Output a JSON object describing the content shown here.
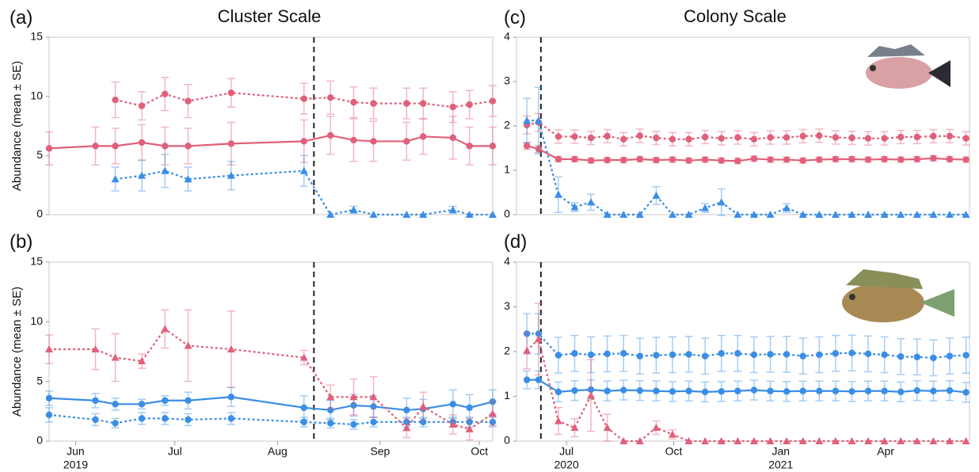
{
  "chart_data": [
    {
      "type": "line",
      "panel_label": "(a)",
      "title": "Cluster Scale",
      "ylabel": "Abundance (mean ± SE)",
      "xlim": [
        144,
        278
      ],
      "ylim": [
        0,
        15
      ],
      "yticks": [
        0,
        5,
        10,
        15
      ],
      "event_x": 224,
      "x": [
        144,
        158,
        164,
        172,
        179,
        186,
        199,
        221,
        229,
        236,
        242,
        252,
        257,
        266,
        271,
        278
      ],
      "series": [
        {
          "color": "#e0607a",
          "style": "solid",
          "marker": "circle",
          "values": [
            5.6,
            5.8,
            5.8,
            6.1,
            5.8,
            5.8,
            6.0,
            6.2,
            6.7,
            6.3,
            6.2,
            6.2,
            6.6,
            6.5,
            5.8,
            5.8
          ],
          "errors": [
            1.4,
            1.6,
            1.5,
            1.5,
            1.6,
            1.5,
            1.8,
            1.8,
            1.6,
            1.8,
            1.7,
            1.6,
            1.5,
            1.8,
            1.6,
            1.6
          ]
        },
        {
          "color": "#e0607a",
          "style": "dotted",
          "marker": "circle",
          "values": [
            null,
            null,
            9.7,
            9.2,
            10.2,
            9.6,
            10.3,
            9.8,
            9.9,
            9.5,
            9.4,
            9.4,
            9.4,
            9.1,
            9.3,
            9.6
          ],
          "errors": [
            null,
            null,
            1.5,
            1.2,
            1.4,
            1.4,
            1.2,
            1.3,
            1.4,
            1.3,
            1.3,
            1.3,
            1.3,
            1.3,
            1.2,
            1.3
          ]
        },
        {
          "color": "#3a8ee6",
          "style": "dotted",
          "marker": "triangle",
          "values": [
            null,
            null,
            3.0,
            3.3,
            3.7,
            3.0,
            3.3,
            3.7,
            0,
            0.4,
            0,
            0,
            0,
            0.4,
            0,
            0
          ],
          "errors": [
            null,
            null,
            1.0,
            1.3,
            1.4,
            1.0,
            1.2,
            1.3,
            0,
            0.3,
            0,
            0,
            0,
            0.3,
            0,
            0
          ]
        }
      ]
    },
    {
      "type": "line",
      "panel_label": "(b)",
      "ylabel": "Abundance (mean ± SE)",
      "xlim": [
        144,
        278
      ],
      "ylim": [
        0,
        15
      ],
      "yticks": [
        0,
        5,
        10,
        15
      ],
      "event_x": 224,
      "xticks": [
        {
          "value": 152,
          "label": "Jun"
        },
        {
          "value": 182,
          "label": "Jul"
        },
        {
          "value": 213,
          "label": "Aug"
        },
        {
          "value": 244,
          "label": "Sep"
        },
        {
          "value": 274,
          "label": "Oct"
        }
      ],
      "year_labels": [
        {
          "value": 152,
          "label": "2019"
        }
      ],
      "x": [
        144,
        158,
        164,
        172,
        179,
        186,
        199,
        221,
        229,
        236,
        242,
        252,
        257,
        266,
        271,
        278
      ],
      "series": [
        {
          "color": "#3a8ee6",
          "style": "solid",
          "marker": "circle",
          "values": [
            3.6,
            3.4,
            3.1,
            3.1,
            3.4,
            3.4,
            3.7,
            2.8,
            2.6,
            3.0,
            2.9,
            2.6,
            2.7,
            3.1,
            2.8,
            3.3
          ],
          "errors": [
            0.6,
            0.6,
            0.5,
            0.4,
            0.4,
            0.7,
            0.8,
            1.0,
            0.8,
            0.9,
            0.9,
            1.0,
            0.8,
            1.2,
            1.1,
            1.0
          ]
        },
        {
          "color": "#3a8ee6",
          "style": "dotted",
          "marker": "circle",
          "values": [
            2.2,
            1.8,
            1.5,
            1.9,
            1.9,
            1.8,
            1.9,
            1.6,
            1.5,
            1.4,
            1.6,
            1.6,
            1.6,
            1.6,
            1.6,
            1.6
          ],
          "errors": [
            0.6,
            0.5,
            0.4,
            0.5,
            0.5,
            0.5,
            0.5,
            0.4,
            0.4,
            0.4,
            0.4,
            0.4,
            0.4,
            0.4,
            0.4,
            0.4
          ]
        },
        {
          "color": "#e0607a",
          "style": "dotted",
          "marker": "triangle",
          "values": [
            7.7,
            7.7,
            7.0,
            6.7,
            9.4,
            8.0,
            7.7,
            7.0,
            3.7,
            3.7,
            3.7,
            1.1,
            2.9,
            1.4,
            1.0,
            2.3
          ],
          "errors": [
            1.2,
            1.7,
            2.0,
            0.6,
            1.6,
            3.0,
            3.2,
            0.6,
            1.0,
            1.5,
            1.7,
            0.8,
            1.2,
            0.8,
            0.9,
            1.0
          ]
        }
      ]
    },
    {
      "type": "line",
      "panel_label": "(c)",
      "title": "Colony Scale",
      "xlim": [
        139,
        528
      ],
      "ylim": [
        0,
        4
      ],
      "yticks": [
        0,
        1,
        2,
        3,
        4
      ],
      "event_x": 160,
      "x": [
        148,
        158,
        175,
        189,
        203,
        217,
        231,
        245,
        259,
        273,
        287,
        301,
        315,
        329,
        343,
        357,
        371,
        385,
        399,
        413,
        427,
        441,
        455,
        469,
        483,
        497,
        511,
        525
      ],
      "series": [
        {
          "color": "#e0607a",
          "style": "solid",
          "marker": "circle",
          "values": [
            1.55,
            1.48,
            1.25,
            1.25,
            1.22,
            1.23,
            1.23,
            1.25,
            1.23,
            1.24,
            1.22,
            1.24,
            1.22,
            1.21,
            1.26,
            1.24,
            1.24,
            1.22,
            1.24,
            1.25,
            1.25,
            1.24,
            1.25,
            1.24,
            1.25,
            1.27,
            1.25,
            1.24
          ],
          "errors": [
            0.08,
            0.08,
            0.06,
            0.06,
            0.06,
            0.06,
            0.06,
            0.06,
            0.06,
            0.06,
            0.06,
            0.06,
            0.06,
            0.06,
            0.06,
            0.06,
            0.06,
            0.06,
            0.06,
            0.06,
            0.06,
            0.06,
            0.06,
            0.06,
            0.06,
            0.06,
            0.06,
            0.06
          ]
        },
        {
          "color": "#e0607a",
          "style": "dotted",
          "marker": "circle",
          "values": [
            2.02,
            2.08,
            1.76,
            1.76,
            1.73,
            1.77,
            1.7,
            1.78,
            1.73,
            1.7,
            1.7,
            1.75,
            1.72,
            1.74,
            1.7,
            1.74,
            1.74,
            1.77,
            1.78,
            1.74,
            1.73,
            1.72,
            1.72,
            1.75,
            1.75,
            1.77,
            1.77,
            1.72
          ],
          "errors": [
            0.2,
            0.2,
            0.15,
            0.15,
            0.15,
            0.15,
            0.15,
            0.15,
            0.15,
            0.15,
            0.15,
            0.15,
            0.15,
            0.15,
            0.15,
            0.15,
            0.15,
            0.15,
            0.15,
            0.15,
            0.15,
            0.15,
            0.15,
            0.15,
            0.15,
            0.15,
            0.15,
            0.15
          ]
        },
        {
          "color": "#3a8ee6",
          "style": "dotted",
          "marker": "triangle",
          "values": [
            2.12,
            2.12,
            0.45,
            0.17,
            0.28,
            0,
            0,
            0,
            0.43,
            0,
            0,
            0.15,
            0.28,
            0,
            0,
            0,
            0.15,
            0,
            0,
            0,
            0,
            0,
            0,
            0,
            0,
            0,
            0,
            0
          ],
          "errors": [
            0.5,
            0.75,
            0.4,
            0.1,
            0.18,
            0,
            0,
            0,
            0.2,
            0,
            0,
            0.1,
            0.3,
            0,
            0,
            0,
            0.1,
            0,
            0,
            0,
            0,
            0,
            0,
            0,
            0,
            0,
            0,
            0
          ]
        }
      ]
    },
    {
      "type": "line",
      "panel_label": "(d)",
      "xlim": [
        139,
        528
      ],
      "ylim": [
        0,
        4
      ],
      "yticks": [
        0,
        1,
        2,
        3,
        4
      ],
      "event_x": 160,
      "xticks": [
        {
          "value": 182,
          "label": "Jul"
        },
        {
          "value": 274,
          "label": "Oct"
        },
        {
          "value": 366,
          "label": "Jan"
        },
        {
          "value": 456,
          "label": "Apr"
        }
      ],
      "year_labels": [
        {
          "value": 182,
          "label": "2020"
        },
        {
          "value": 366,
          "label": "2021"
        }
      ],
      "x": [
        148,
        158,
        175,
        189,
        203,
        217,
        231,
        245,
        259,
        273,
        287,
        301,
        315,
        329,
        343,
        357,
        371,
        385,
        399,
        413,
        427,
        441,
        455,
        469,
        483,
        497,
        511,
        525
      ],
      "series": [
        {
          "color": "#3a8ee6",
          "style": "solid",
          "marker": "circle",
          "values": [
            1.37,
            1.37,
            1.1,
            1.13,
            1.15,
            1.12,
            1.14,
            1.13,
            1.12,
            1.11,
            1.12,
            1.1,
            1.11,
            1.12,
            1.14,
            1.12,
            1.11,
            1.12,
            1.12,
            1.12,
            1.11,
            1.12,
            1.12,
            1.1,
            1.13,
            1.12,
            1.13,
            1.09
          ],
          "errors": [
            0.2,
            0.2,
            0.22,
            0.22,
            0.22,
            0.22,
            0.22,
            0.22,
            0.22,
            0.22,
            0.22,
            0.22,
            0.22,
            0.22,
            0.22,
            0.22,
            0.22,
            0.22,
            0.22,
            0.22,
            0.22,
            0.22,
            0.22,
            0.22,
            0.22,
            0.22,
            0.22,
            0.22
          ]
        },
        {
          "color": "#3a8ee6",
          "style": "dotted",
          "marker": "circle",
          "values": [
            2.4,
            2.4,
            1.92,
            1.96,
            1.93,
            1.95,
            1.96,
            1.9,
            1.92,
            1.93,
            1.94,
            1.9,
            1.96,
            1.96,
            1.93,
            1.94,
            1.94,
            1.9,
            1.93,
            1.96,
            1.97,
            1.95,
            1.93,
            1.89,
            1.88,
            1.86,
            1.9,
            1.92
          ],
          "errors": [
            0.45,
            0.45,
            0.4,
            0.4,
            0.4,
            0.4,
            0.4,
            0.4,
            0.4,
            0.4,
            0.4,
            0.4,
            0.4,
            0.4,
            0.4,
            0.4,
            0.4,
            0.4,
            0.4,
            0.4,
            0.4,
            0.4,
            0.4,
            0.4,
            0.4,
            0.4,
            0.4,
            0.4
          ]
        },
        {
          "color": "#e0607a",
          "style": "dotted",
          "marker": "triangle",
          "values": [
            2.02,
            2.28,
            0.45,
            0.3,
            1.02,
            0.3,
            0,
            0,
            0.3,
            0.15,
            0,
            0,
            0,
            0,
            0,
            0,
            0,
            0,
            0,
            0,
            0,
            0,
            0,
            0,
            0,
            0,
            0,
            0
          ],
          "errors": [
            0.4,
            0.8,
            0.3,
            0.2,
            0.8,
            0.3,
            0,
            0,
            0.15,
            0.1,
            0,
            0,
            0,
            0,
            0,
            0,
            0,
            0,
            0,
            0,
            0,
            0,
            0,
            0,
            0,
            0,
            0,
            0
          ]
        }
      ]
    }
  ]
}
